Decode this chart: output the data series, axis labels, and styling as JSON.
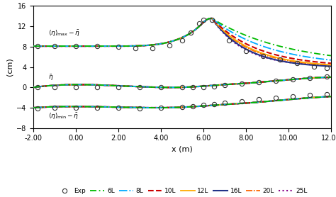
{
  "xlabel": "x (m)",
  "ylabel": "(cm)",
  "xlim": [
    -2.0,
    12.0
  ],
  "ylim": [
    -8,
    16
  ],
  "yticks": [
    -8,
    -4,
    0,
    4,
    8,
    12,
    16
  ],
  "xticks": [
    -2.0,
    0.0,
    2.0,
    4.0,
    6.0,
    8.0,
    10.0,
    12.0
  ],
  "line_styles": {
    "6L": {
      "color": "#00bb00",
      "linestyle": "--",
      "linewidth": 1.3,
      "dashes": [
        5,
        2,
        1,
        2
      ]
    },
    "8L": {
      "color": "#00aaff",
      "linestyle": "-.",
      "linewidth": 1.3
    },
    "10L": {
      "color": "#cc0000",
      "linestyle": "--",
      "linewidth": 1.5
    },
    "12L": {
      "color": "#ffaa00",
      "linestyle": "-",
      "linewidth": 1.3
    },
    "16L": {
      "color": "#223388",
      "linestyle": "-",
      "linewidth": 1.5
    },
    "20L": {
      "color": "#ff6600",
      "linestyle": "--",
      "linewidth": 1.3,
      "dashes": [
        5,
        1,
        1,
        1
      ]
    },
    "25L": {
      "color": "#880088",
      "linestyle": ":",
      "linewidth": 1.5
    }
  }
}
